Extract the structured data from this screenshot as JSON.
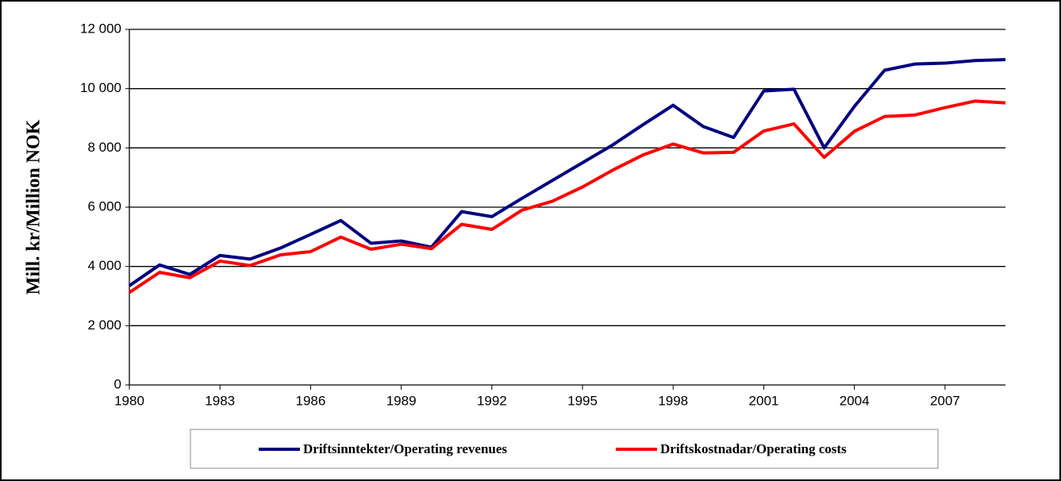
{
  "chart_data": {
    "type": "line",
    "y_label": "Mill. kr/Million NOK",
    "x": [
      1980,
      1981,
      1982,
      1983,
      1984,
      1985,
      1986,
      1987,
      1988,
      1989,
      1990,
      1991,
      1992,
      1993,
      1994,
      1995,
      1996,
      1997,
      1998,
      1999,
      2000,
      2001,
      2002,
      2003,
      2004,
      2005,
      2006,
      2007,
      2008,
      2009
    ],
    "series": [
      {
        "name": "Driftsinntekter/Operating revenues",
        "color": "#000080",
        "values": [
          3350,
          4050,
          3730,
          4370,
          4250,
          4620,
          5080,
          5550,
          4780,
          4860,
          4650,
          5850,
          5680,
          6300,
          6900,
          7500,
          8100,
          8780,
          9440,
          8720,
          8350,
          9920,
          9980,
          8000,
          9400,
          10620,
          10830,
          10860,
          10950,
          10980
        ]
      },
      {
        "name": "Driftskostnadar/Operating costs",
        "color": "#ff0000",
        "values": [
          3120,
          3800,
          3620,
          4180,
          4030,
          4390,
          4500,
          4990,
          4580,
          4750,
          4600,
          5420,
          5250,
          5900,
          6200,
          6680,
          7250,
          7760,
          8130,
          7830,
          7850,
          8570,
          8810,
          7680,
          8560,
          9060,
          9110,
          9360,
          9580,
          9520
        ]
      }
    ],
    "xlim": [
      1980,
      2009
    ],
    "xticks": [
      1980,
      1983,
      1986,
      1989,
      1992,
      1995,
      1998,
      2001,
      2004,
      2007
    ],
    "ylim": [
      0,
      12000
    ],
    "yticks": [
      0,
      {
        "value": 2000,
        "label": "2 000"
      },
      {
        "value": 4000,
        "label": "4 000"
      },
      {
        "value": 6000,
        "label": "6 000"
      },
      {
        "value": 8000,
        "label": "8 000"
      },
      {
        "value": 10000,
        "label": "10 000"
      },
      {
        "value": 12000,
        "label": "12 000"
      }
    ],
    "grid": true,
    "legend": "bottom"
  }
}
